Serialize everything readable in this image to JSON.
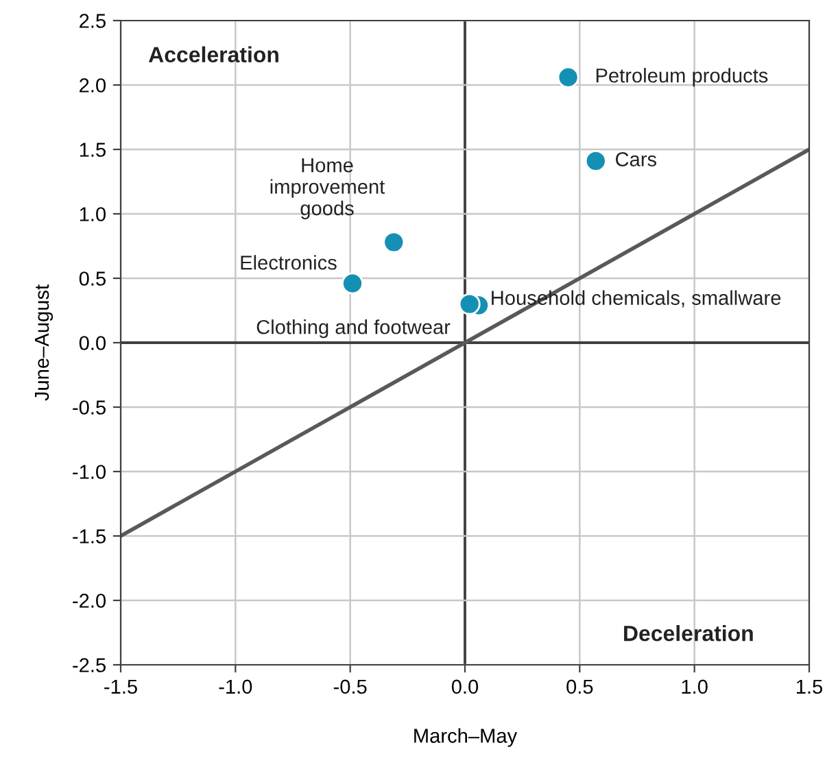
{
  "chart_data": {
    "type": "scatter",
    "xlabel": "March–May",
    "ylabel": "June–August",
    "xlim": [
      -1.5,
      1.5
    ],
    "ylim": [
      -2.5,
      2.5
    ],
    "xticks": [
      {
        "value": -1.5,
        "label": "-1.5"
      },
      {
        "value": -1.0,
        "label": "-1.0"
      },
      {
        "value": -0.5,
        "label": "-0.5"
      },
      {
        "value": 0,
        "label": "0.0"
      },
      {
        "value": 0.5,
        "label": "0.5"
      },
      {
        "value": 1.0,
        "label": "1.0"
      },
      {
        "value": 1.5,
        "label": "1.5"
      }
    ],
    "yticks": [
      {
        "value": -2.5,
        "label": "-2.5"
      },
      {
        "value": -2.0,
        "label": "-2.0"
      },
      {
        "value": -1.5,
        "label": "-1.5"
      },
      {
        "value": -1.0,
        "label": "-1.0"
      },
      {
        "value": -0.5,
        "label": "-0.5"
      },
      {
        "value": 0,
        "label": "0.0"
      },
      {
        "value": 0.5,
        "label": "0.5"
      },
      {
        "value": 1.0,
        "label": "1.0"
      },
      {
        "value": 1.5,
        "label": "1.5"
      },
      {
        "value": 2.0,
        "label": "2.0"
      },
      {
        "value": 2.5,
        "label": "2.5"
      }
    ],
    "grid": true,
    "marker": "circle",
    "series": [
      {
        "color": "#1590b5",
        "x": [
          0.45,
          0.57,
          -0.31,
          -0.49,
          0.06,
          0.02
        ],
        "values": [
          2.06,
          1.41,
          0.78,
          0.46,
          0.29,
          0.3
        ],
        "value_labels": [
          "Petroleum products",
          "Cars",
          "Home\nimprovement\ngoods",
          "Electronics",
          "Household chemicals, smallware",
          "Clothing and footwear"
        ]
      },
      {
        "type": "line",
        "marker": "none",
        "color": "#595959",
        "x": [
          -1.5,
          1.5
        ],
        "values": [
          -1.5,
          1.5
        ]
      }
    ],
    "annotations": [
      "Acceleration",
      "Deceleration"
    ]
  }
}
